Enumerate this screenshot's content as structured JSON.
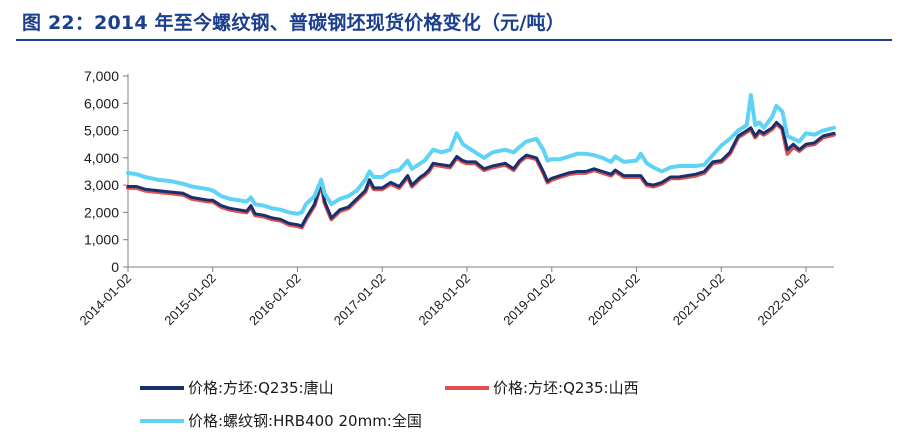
{
  "figure": {
    "title": "图 22：2014 年至今螺纹钢、普碳钢坯现货价格变化（元/吨）"
  },
  "chart_data": {
    "type": "line",
    "title": "图 22：2014 年至今螺纹钢、普碳钢坯现货价格变化（元/吨）",
    "xlabel": "",
    "ylabel": "",
    "ylim": [
      0,
      7000
    ],
    "xlim": [
      2014.0,
      2022.33
    ],
    "grid": false,
    "legend_position": "bottom",
    "yticks": [
      "0",
      "1,000",
      "2,000",
      "3,000",
      "4,000",
      "5,000",
      "6,000",
      "7,000"
    ],
    "ytick_values": [
      0,
      1000,
      2000,
      3000,
      4000,
      5000,
      6000,
      7000
    ],
    "xticks": [
      "2014-01-02",
      "2015-01-02",
      "2016-01-02",
      "2017-01-02",
      "2018-01-02",
      "2019-01-02",
      "2020-01-02",
      "2021-01-02",
      "2022-01-02"
    ],
    "xtick_values": [
      2014,
      2015,
      2016,
      2017,
      2018,
      2019,
      2020,
      2021,
      2022
    ],
    "series": [
      {
        "name": "价格:方坯:Q235:唐山",
        "color": "#17306e",
        "width": 3,
        "points": [
          [
            2014.0,
            2950
          ],
          [
            2014.1,
            2950
          ],
          [
            2014.2,
            2850
          ],
          [
            2014.35,
            2800
          ],
          [
            2014.5,
            2750
          ],
          [
            2014.65,
            2700
          ],
          [
            2014.75,
            2550
          ],
          [
            2014.85,
            2500
          ],
          [
            2014.95,
            2450
          ],
          [
            2015.0,
            2450
          ],
          [
            2015.1,
            2250
          ],
          [
            2015.2,
            2150
          ],
          [
            2015.3,
            2100
          ],
          [
            2015.4,
            2050
          ],
          [
            2015.45,
            2250
          ],
          [
            2015.5,
            1950
          ],
          [
            2015.6,
            1900
          ],
          [
            2015.7,
            1800
          ],
          [
            2015.8,
            1750
          ],
          [
            2015.9,
            1600
          ],
          [
            2016.0,
            1550
          ],
          [
            2016.05,
            1500
          ],
          [
            2016.1,
            1800
          ],
          [
            2016.2,
            2300
          ],
          [
            2016.28,
            3100
          ],
          [
            2016.32,
            2400
          ],
          [
            2016.4,
            1800
          ],
          [
            2016.5,
            2100
          ],
          [
            2016.6,
            2200
          ],
          [
            2016.7,
            2500
          ],
          [
            2016.8,
            2800
          ],
          [
            2016.85,
            3200
          ],
          [
            2016.9,
            2900
          ],
          [
            2017.0,
            2900
          ],
          [
            2017.1,
            3100
          ],
          [
            2017.2,
            2950
          ],
          [
            2017.3,
            3350
          ],
          [
            2017.35,
            3000
          ],
          [
            2017.45,
            3300
          ],
          [
            2017.5,
            3400
          ],
          [
            2017.55,
            3550
          ],
          [
            2017.6,
            3800
          ],
          [
            2017.7,
            3750
          ],
          [
            2017.8,
            3700
          ],
          [
            2017.88,
            4050
          ],
          [
            2017.95,
            3900
          ],
          [
            2018.0,
            3850
          ],
          [
            2018.1,
            3850
          ],
          [
            2018.2,
            3600
          ],
          [
            2018.3,
            3700
          ],
          [
            2018.45,
            3800
          ],
          [
            2018.55,
            3600
          ],
          [
            2018.62,
            3900
          ],
          [
            2018.7,
            4100
          ],
          [
            2018.82,
            4000
          ],
          [
            2018.9,
            3500
          ],
          [
            2018.95,
            3150
          ],
          [
            2019.0,
            3250
          ],
          [
            2019.1,
            3350
          ],
          [
            2019.2,
            3450
          ],
          [
            2019.3,
            3500
          ],
          [
            2019.4,
            3500
          ],
          [
            2019.5,
            3600
          ],
          [
            2019.6,
            3500
          ],
          [
            2019.7,
            3400
          ],
          [
            2019.75,
            3550
          ],
          [
            2019.85,
            3350
          ],
          [
            2020.0,
            3350
          ],
          [
            2020.05,
            3350
          ],
          [
            2020.12,
            3050
          ],
          [
            2020.2,
            3000
          ],
          [
            2020.3,
            3100
          ],
          [
            2020.4,
            3300
          ],
          [
            2020.5,
            3300
          ],
          [
            2020.6,
            3350
          ],
          [
            2020.7,
            3400
          ],
          [
            2020.8,
            3500
          ],
          [
            2020.9,
            3850
          ],
          [
            2021.0,
            3900
          ],
          [
            2021.1,
            4200
          ],
          [
            2021.2,
            4800
          ],
          [
            2021.3,
            5000
          ],
          [
            2021.35,
            5100
          ],
          [
            2021.4,
            4800
          ],
          [
            2021.45,
            5000
          ],
          [
            2021.5,
            4900
          ],
          [
            2021.6,
            5100
          ],
          [
            2021.65,
            5300
          ],
          [
            2021.72,
            5100
          ],
          [
            2021.78,
            4300
          ],
          [
            2021.85,
            4500
          ],
          [
            2021.92,
            4300
          ],
          [
            2022.0,
            4500
          ],
          [
            2022.1,
            4550
          ],
          [
            2022.2,
            4800
          ],
          [
            2022.33,
            4900
          ]
        ]
      },
      {
        "name": "价格:方坯:Q235:山西",
        "color": "#e0504c",
        "width": 4,
        "points": [
          [
            2014.0,
            2900
          ],
          [
            2014.1,
            2900
          ],
          [
            2014.2,
            2800
          ],
          [
            2014.35,
            2750
          ],
          [
            2014.5,
            2700
          ],
          [
            2014.65,
            2650
          ],
          [
            2014.75,
            2500
          ],
          [
            2014.85,
            2450
          ],
          [
            2014.95,
            2400
          ],
          [
            2015.0,
            2400
          ],
          [
            2015.1,
            2200
          ],
          [
            2015.2,
            2100
          ],
          [
            2015.3,
            2050
          ],
          [
            2015.4,
            2000
          ],
          [
            2015.45,
            2200
          ],
          [
            2015.5,
            1900
          ],
          [
            2015.6,
            1850
          ],
          [
            2015.7,
            1750
          ],
          [
            2015.8,
            1700
          ],
          [
            2015.9,
            1550
          ],
          [
            2016.0,
            1500
          ],
          [
            2016.05,
            1450
          ],
          [
            2016.1,
            1750
          ],
          [
            2016.2,
            2250
          ],
          [
            2016.28,
            3050
          ],
          [
            2016.32,
            2350
          ],
          [
            2016.4,
            1750
          ],
          [
            2016.5,
            2050
          ],
          [
            2016.6,
            2150
          ],
          [
            2016.7,
            2450
          ],
          [
            2016.8,
            2750
          ],
          [
            2016.85,
            3150
          ],
          [
            2016.9,
            2850
          ],
          [
            2017.0,
            2850
          ],
          [
            2017.1,
            3050
          ],
          [
            2017.2,
            2900
          ],
          [
            2017.3,
            3300
          ],
          [
            2017.35,
            2950
          ],
          [
            2017.45,
            3250
          ],
          [
            2017.5,
            3350
          ],
          [
            2017.55,
            3500
          ],
          [
            2017.6,
            3750
          ],
          [
            2017.7,
            3700
          ],
          [
            2017.8,
            3650
          ],
          [
            2017.88,
            4000
          ],
          [
            2017.95,
            3850
          ],
          [
            2018.0,
            3800
          ],
          [
            2018.1,
            3800
          ],
          [
            2018.2,
            3550
          ],
          [
            2018.3,
            3650
          ],
          [
            2018.45,
            3750
          ],
          [
            2018.55,
            3550
          ],
          [
            2018.62,
            3850
          ],
          [
            2018.7,
            4050
          ],
          [
            2018.82,
            3950
          ],
          [
            2018.9,
            3450
          ],
          [
            2018.95,
            3100
          ],
          [
            2019.0,
            3200
          ],
          [
            2019.1,
            3300
          ],
          [
            2019.2,
            3400
          ],
          [
            2019.3,
            3450
          ],
          [
            2019.4,
            3450
          ],
          [
            2019.5,
            3550
          ],
          [
            2019.6,
            3450
          ],
          [
            2019.7,
            3350
          ],
          [
            2019.75,
            3500
          ],
          [
            2019.85,
            3300
          ],
          [
            2020.0,
            3300
          ],
          [
            2020.05,
            3300
          ],
          [
            2020.12,
            3000
          ],
          [
            2020.2,
            2950
          ],
          [
            2020.3,
            3050
          ],
          [
            2020.4,
            3250
          ],
          [
            2020.5,
            3250
          ],
          [
            2020.6,
            3300
          ],
          [
            2020.7,
            3350
          ],
          [
            2020.8,
            3450
          ],
          [
            2020.9,
            3800
          ],
          [
            2021.0,
            3850
          ],
          [
            2021.1,
            4150
          ],
          [
            2021.2,
            4750
          ],
          [
            2021.3,
            4950
          ],
          [
            2021.35,
            5050
          ],
          [
            2021.4,
            4750
          ],
          [
            2021.45,
            4950
          ],
          [
            2021.5,
            4850
          ],
          [
            2021.6,
            5050
          ],
          [
            2021.65,
            5250
          ],
          [
            2021.72,
            5050
          ],
          [
            2021.78,
            4150
          ],
          [
            2021.85,
            4400
          ],
          [
            2021.92,
            4250
          ],
          [
            2022.0,
            4450
          ],
          [
            2022.1,
            4500
          ],
          [
            2022.2,
            4750
          ],
          [
            2022.33,
            4850
          ]
        ]
      },
      {
        "name": "价格:螺纹钢:HRB400 20mm:全国",
        "color": "#5fd3f5",
        "width": 4,
        "points": [
          [
            2014.0,
            3450
          ],
          [
            2014.1,
            3400
          ],
          [
            2014.2,
            3300
          ],
          [
            2014.35,
            3200
          ],
          [
            2014.5,
            3150
          ],
          [
            2014.65,
            3050
          ],
          [
            2014.75,
            2950
          ],
          [
            2014.85,
            2900
          ],
          [
            2014.95,
            2850
          ],
          [
            2015.0,
            2800
          ],
          [
            2015.1,
            2600
          ],
          [
            2015.2,
            2500
          ],
          [
            2015.3,
            2450
          ],
          [
            2015.4,
            2400
          ],
          [
            2015.45,
            2550
          ],
          [
            2015.5,
            2300
          ],
          [
            2015.6,
            2250
          ],
          [
            2015.7,
            2150
          ],
          [
            2015.8,
            2100
          ],
          [
            2015.9,
            2000
          ],
          [
            2016.0,
            1950
          ],
          [
            2016.05,
            2000
          ],
          [
            2016.1,
            2300
          ],
          [
            2016.2,
            2600
          ],
          [
            2016.28,
            3200
          ],
          [
            2016.32,
            2700
          ],
          [
            2016.4,
            2300
          ],
          [
            2016.5,
            2500
          ],
          [
            2016.6,
            2600
          ],
          [
            2016.7,
            2800
          ],
          [
            2016.8,
            3200
          ],
          [
            2016.85,
            3500
          ],
          [
            2016.9,
            3300
          ],
          [
            2017.0,
            3300
          ],
          [
            2017.1,
            3500
          ],
          [
            2017.2,
            3550
          ],
          [
            2017.3,
            3900
          ],
          [
            2017.35,
            3600
          ],
          [
            2017.45,
            3800
          ],
          [
            2017.5,
            3900
          ],
          [
            2017.55,
            4100
          ],
          [
            2017.6,
            4300
          ],
          [
            2017.7,
            4200
          ],
          [
            2017.8,
            4300
          ],
          [
            2017.88,
            4900
          ],
          [
            2017.95,
            4500
          ],
          [
            2018.0,
            4400
          ],
          [
            2018.1,
            4200
          ],
          [
            2018.2,
            4000
          ],
          [
            2018.3,
            4200
          ],
          [
            2018.45,
            4300
          ],
          [
            2018.55,
            4200
          ],
          [
            2018.62,
            4400
          ],
          [
            2018.7,
            4600
          ],
          [
            2018.82,
            4700
          ],
          [
            2018.9,
            4300
          ],
          [
            2018.95,
            3900
          ],
          [
            2019.0,
            3950
          ],
          [
            2019.1,
            3950
          ],
          [
            2019.2,
            4050
          ],
          [
            2019.3,
            4150
          ],
          [
            2019.4,
            4150
          ],
          [
            2019.5,
            4100
          ],
          [
            2019.6,
            4000
          ],
          [
            2019.7,
            3850
          ],
          [
            2019.75,
            4050
          ],
          [
            2019.85,
            3850
          ],
          [
            2020.0,
            3900
          ],
          [
            2020.05,
            4150
          ],
          [
            2020.12,
            3800
          ],
          [
            2020.2,
            3650
          ],
          [
            2020.3,
            3500
          ],
          [
            2020.4,
            3650
          ],
          [
            2020.5,
            3700
          ],
          [
            2020.6,
            3700
          ],
          [
            2020.7,
            3700
          ],
          [
            2020.8,
            3750
          ],
          [
            2020.9,
            4100
          ],
          [
            2021.0,
            4450
          ],
          [
            2021.1,
            4700
          ],
          [
            2021.2,
            5000
          ],
          [
            2021.3,
            5200
          ],
          [
            2021.35,
            6300
          ],
          [
            2021.4,
            5200
          ],
          [
            2021.45,
            5300
          ],
          [
            2021.5,
            5100
          ],
          [
            2021.6,
            5500
          ],
          [
            2021.65,
            5900
          ],
          [
            2021.72,
            5700
          ],
          [
            2021.78,
            4800
          ],
          [
            2021.85,
            4700
          ],
          [
            2021.92,
            4600
          ],
          [
            2022.0,
            4900
          ],
          [
            2022.1,
            4850
          ],
          [
            2022.2,
            5000
          ],
          [
            2022.33,
            5100
          ]
        ]
      }
    ],
    "legend": [
      "价格:方坯:Q235:唐山",
      "价格:方坯:Q235:山西",
      "价格:螺纹钢:HRB400 20mm:全国"
    ]
  }
}
